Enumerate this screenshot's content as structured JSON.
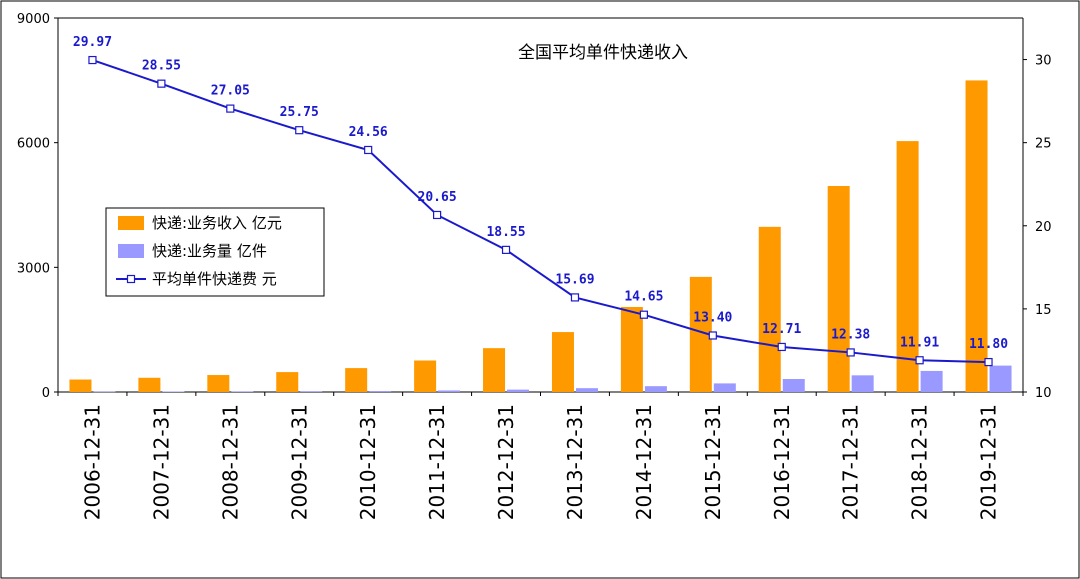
{
  "chart_data": {
    "type": "bar",
    "title": "全国平均单件快递收入",
    "categories": [
      "2006-12-31",
      "2007-12-31",
      "2008-12-31",
      "2009-12-31",
      "2010-12-31",
      "2011-12-31",
      "2012-12-31",
      "2013-12-31",
      "2014-12-31",
      "2015-12-31",
      "2016-12-31",
      "2017-12-31",
      "2018-12-31",
      "2019-12-31"
    ],
    "series": [
      {
        "name": "快递:业务收入 亿元",
        "type": "bar",
        "axis": "left",
        "color": "#ff9900",
        "values": [
          300,
          342,
          408,
          479,
          575,
          758,
          1055,
          1442,
          2045,
          2770,
          3974,
          4957,
          6038,
          7498
        ]
      },
      {
        "name": "快递:业务量 亿件",
        "type": "bar",
        "axis": "left",
        "color": "#9999ff",
        "values": [
          10,
          12,
          15,
          19,
          23,
          37,
          57,
          92,
          140,
          207,
          313,
          401,
          507,
          635
        ]
      },
      {
        "name": "平均单件快递费 元",
        "type": "line",
        "axis": "right",
        "color": "#1a1acc",
        "values": [
          29.97,
          28.55,
          27.05,
          25.75,
          24.56,
          20.65,
          18.55,
          15.69,
          14.65,
          13.4,
          12.71,
          12.38,
          11.91,
          11.8
        ],
        "labels": [
          "29.97",
          "28.55",
          "27.05",
          "25.75",
          "24.56",
          "20.65",
          "18.55",
          "15.69",
          "14.65",
          "13.40",
          "12.71",
          "12.38",
          "11.91",
          "11.80"
        ]
      }
    ],
    "y_left": {
      "ylim": [
        0,
        9000
      ],
      "ticks": [
        "0",
        "3000",
        "6000",
        "9000"
      ],
      "tick_values": [
        0,
        3000,
        6000,
        9000
      ]
    },
    "y_right": {
      "ylim": [
        10,
        32.5
      ],
      "ticks": [
        "10",
        "15",
        "20",
        "25",
        "30"
      ],
      "tick_values": [
        10,
        15,
        20,
        25,
        30
      ]
    },
    "grid": false,
    "legend_position": "left-middle"
  }
}
